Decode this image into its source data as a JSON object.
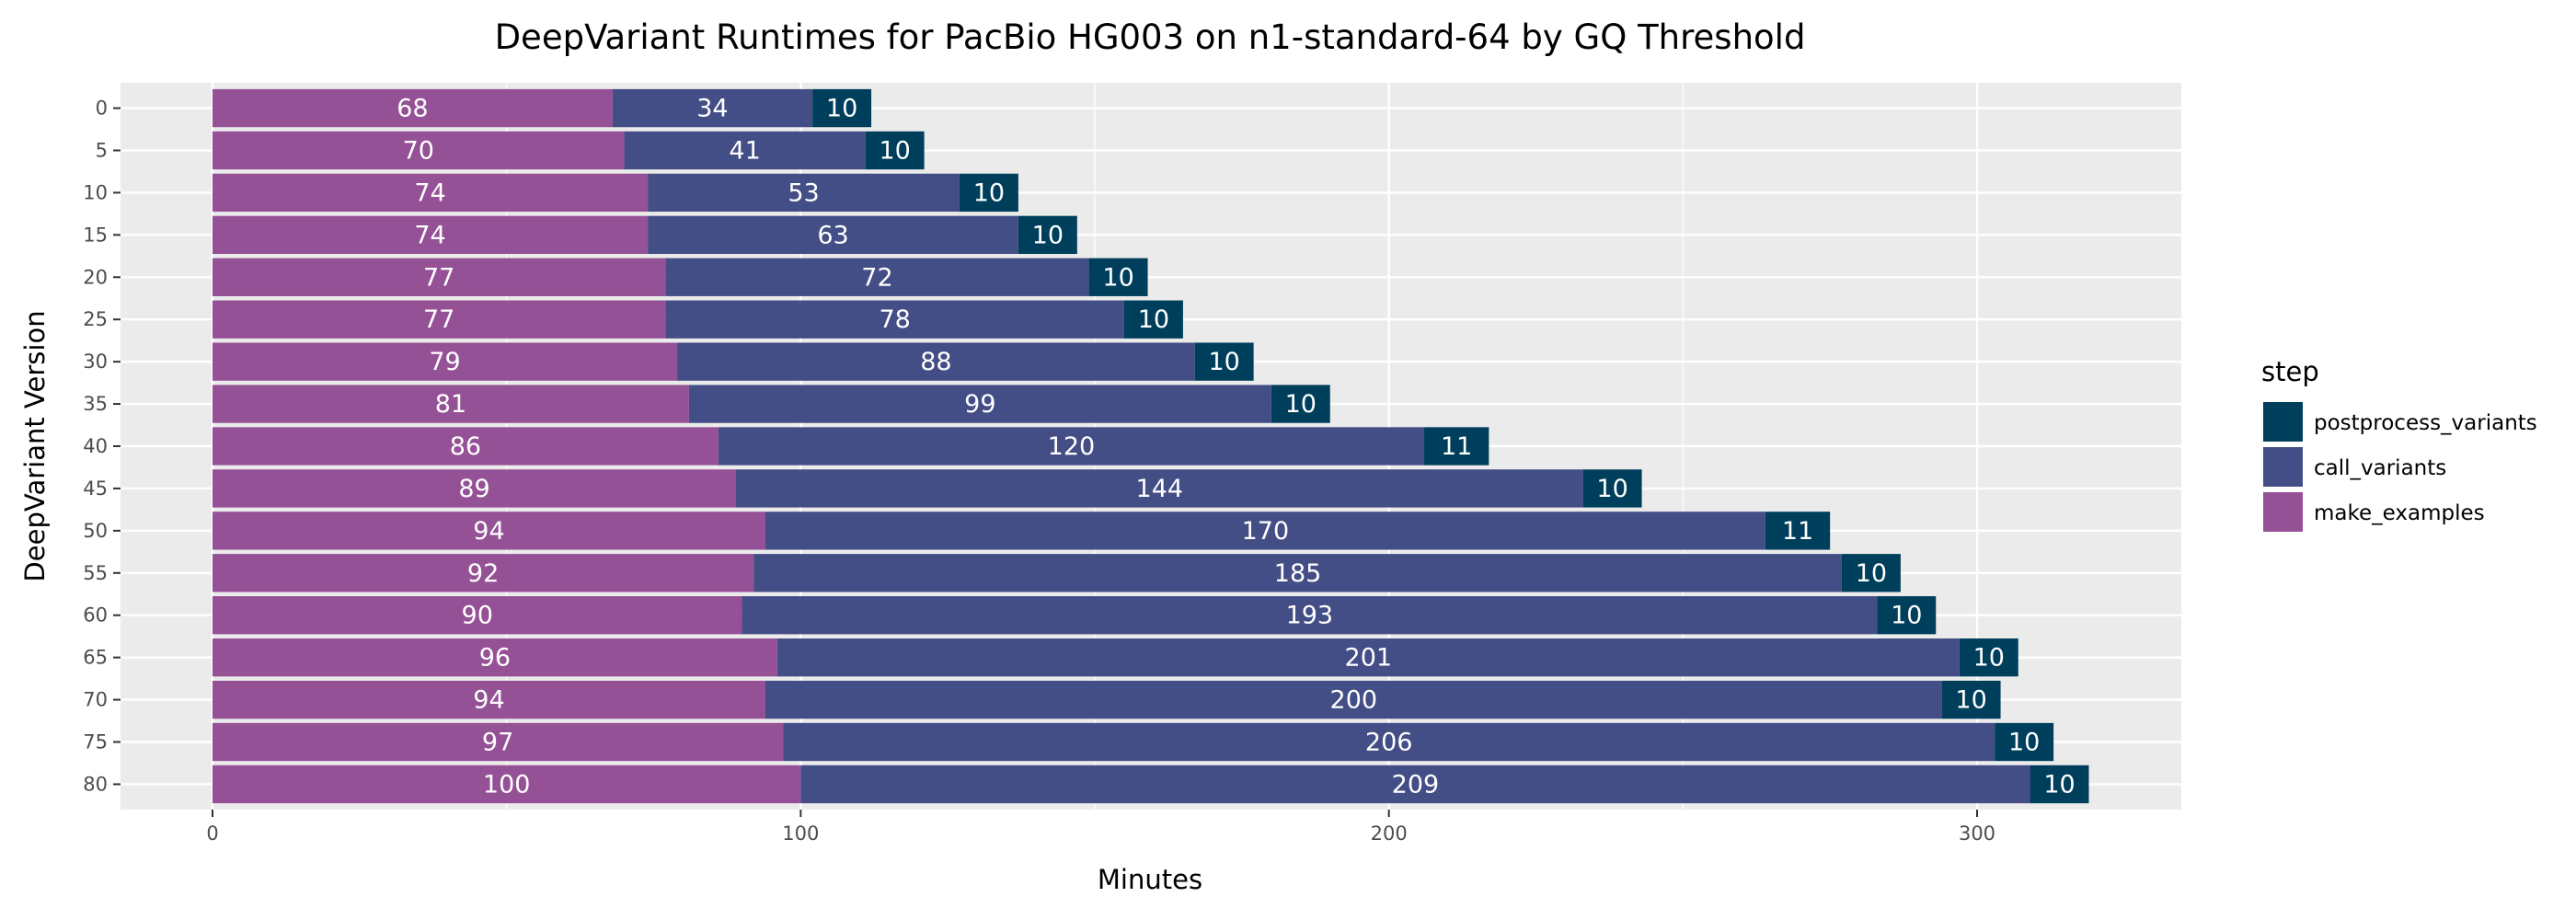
{
  "chart_data": {
    "type": "bar",
    "orientation": "horizontal",
    "stacked": true,
    "title": "DeepVariant Runtimes for PacBio HG003 on n1-standard-64 by GQ Threshold",
    "xlabel": "Minutes",
    "ylabel": "DeepVariant Version",
    "xlim": [
      0,
      335
    ],
    "x_ticks": [
      "0",
      "100",
      "200",
      "300"
    ],
    "grid": true,
    "legend_placement": "right",
    "legend_title": "step",
    "categories": [
      "0",
      "5",
      "10",
      "15",
      "20",
      "25",
      "30",
      "35",
      "40",
      "45",
      "50",
      "55",
      "60",
      "65",
      "70",
      "75",
      "80"
    ],
    "series": [
      {
        "name": "make_examples",
        "color": "#955196",
        "values": [
          68,
          70,
          74,
          74,
          77,
          77,
          79,
          81,
          86,
          89,
          94,
          92,
          90,
          96,
          94,
          97,
          100
        ]
      },
      {
        "name": "call_variants",
        "color": "#444E86",
        "values": [
          34,
          41,
          53,
          63,
          72,
          78,
          88,
          99,
          120,
          144,
          170,
          185,
          193,
          201,
          200,
          206,
          209
        ]
      },
      {
        "name": "postprocess_variants",
        "color": "#003F5C",
        "values": [
          10,
          10,
          10,
          10,
          10,
          10,
          10,
          10,
          11,
          10,
          11,
          10,
          10,
          10,
          10,
          10,
          10
        ]
      }
    ],
    "legend_order": [
      "postprocess_variants",
      "call_variants",
      "make_examples"
    ],
    "panel_color": "#EBEBEB",
    "grid_color": "#FFFFFF"
  }
}
